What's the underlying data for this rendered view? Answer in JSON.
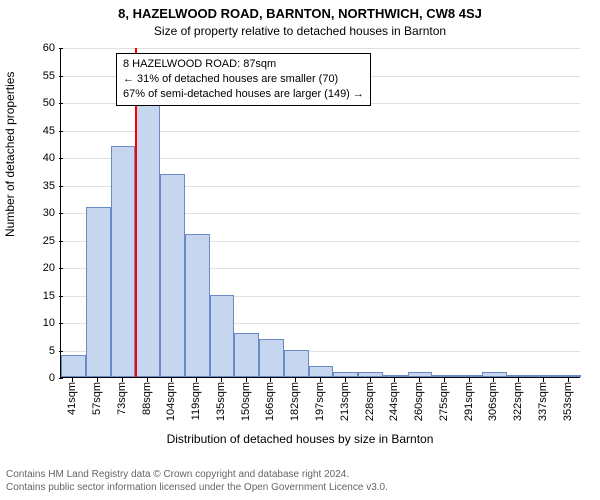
{
  "title": "8, HAZELWOOD ROAD, BARNTON, NORTHWICH, CW8 4SJ",
  "subtitle": "Size of property relative to detached houses in Barnton",
  "ylabel": "Number of detached properties",
  "xlabel": "Distribution of detached houses by size in Barnton",
  "footer_line1": "Contains HM Land Registry data © Crown copyright and database right 2024.",
  "footer_line2": "Contains public sector information licensed under the Open Government Licence v3.0.",
  "chart": {
    "type": "histogram",
    "ylim": [
      0,
      60
    ],
    "ytick_step": 5,
    "x_categories": [
      "41sqm",
      "57sqm",
      "73sqm",
      "88sqm",
      "104sqm",
      "119sqm",
      "135sqm",
      "150sqm",
      "166sqm",
      "182sqm",
      "197sqm",
      "213sqm",
      "228sqm",
      "244sqm",
      "260sqm",
      "275sqm",
      "291sqm",
      "306sqm",
      "322sqm",
      "337sqm",
      "353sqm"
    ],
    "values": [
      4,
      31,
      42,
      50,
      37,
      26,
      15,
      8,
      7,
      5,
      2,
      1,
      1,
      0,
      1,
      0,
      0,
      1,
      0,
      0,
      0
    ],
    "bar_fill": "#c7d6ef",
    "bar_stroke": "#6b89c4",
    "bar_stroke_width": 1,
    "grid_color": "#e0e0e0",
    "background": "#ffffff",
    "marker": {
      "bin_index": 3,
      "color": "#ff0000",
      "width": 2
    },
    "annotation": {
      "line1": "8 HAZELWOOD ROAD: 87sqm",
      "line2": "← 31% of detached houses are smaller (70)",
      "line3": "67% of semi-detached houses are larger (149) →",
      "border_color": "#000000",
      "background": "#ffffff",
      "fontsize": 11
    },
    "tick_fontsize": 11,
    "label_fontsize": 12,
    "title_fontsize": 13
  }
}
